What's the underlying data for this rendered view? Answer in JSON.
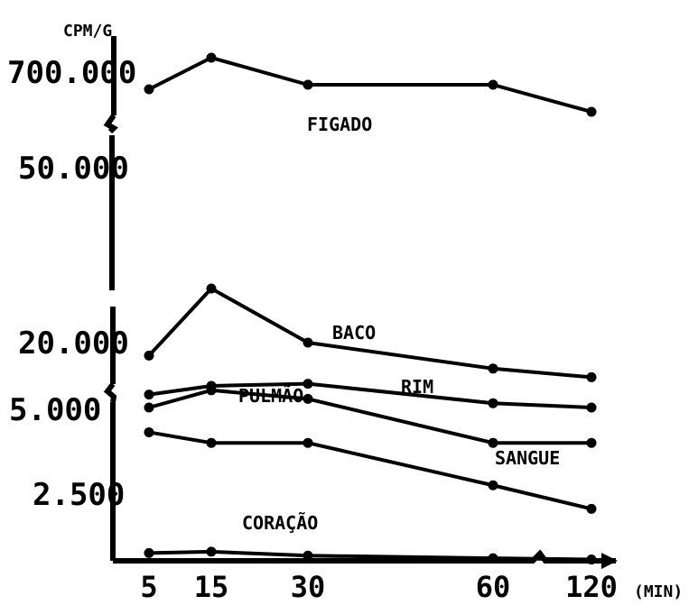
{
  "chart_data": {
    "type": "line",
    "title": "",
    "ylabel": "CPM/G",
    "xlabel": "(MIN)",
    "x": [
      "5",
      "15",
      "30",
      "60",
      "120"
    ],
    "y_tick_labels": [
      "700.000",
      "50.000",
      "20.000",
      "5.000",
      "2.500"
    ],
    "y_scale": "broken axis, non-linear",
    "grid": false,
    "series": [
      {
        "name": "FIGADO",
        "values": [
          650000,
          720000,
          660000,
          660000,
          600000
        ]
      },
      {
        "name": "BACO",
        "values": [
          17000,
          30000,
          20000,
          14000,
          12000
        ]
      },
      {
        "name": "RIM",
        "values": [
          8000,
          10000,
          10500,
          6000,
          5000
        ]
      },
      {
        "name": "PULMÃO",
        "values": [
          5000,
          9000,
          7000,
          4000,
          4000
        ]
      },
      {
        "name": "SANGUE",
        "values": [
          4300,
          4000,
          4000,
          2800,
          2000
        ]
      },
      {
        "name": "CORAÇÃO",
        "values": [
          300,
          350,
          200,
          100,
          50
        ]
      }
    ]
  }
}
